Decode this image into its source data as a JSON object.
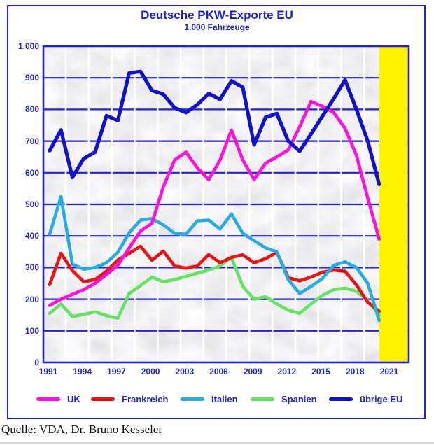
{
  "title": "Deutsche PKW-Exporte EU",
  "subtitle": "1.000 Fahrzeuge",
  "source": "Quelle: VDA, Dr. Bruno Kesseler",
  "colors": {
    "axis_blue": "#2222d6",
    "title_blue": "#1a1ae0",
    "highlight_yellow": "#fff200",
    "plot_background": "#ebebed",
    "gridline_white": "#ffffff"
  },
  "chart_data": {
    "type": "line",
    "title": "Deutsche PKW-Exporte EU",
    "subtitle": "1.000 Fahrzeuge",
    "unit": "1.000 Fahrzeuge",
    "grid": true,
    "legend_position": "bottom",
    "ylim": [
      0,
      1000
    ],
    "x": [
      1991,
      1992,
      1993,
      1994,
      1995,
      1996,
      1997,
      1998,
      1999,
      2000,
      2001,
      2002,
      2003,
      2004,
      2005,
      2006,
      2007,
      2008,
      2009,
      2010,
      2011,
      2012,
      2013,
      2014,
      2015,
      2016,
      2017,
      2018,
      2019,
      2020
    ],
    "x_ticks": [
      {
        "label": "1991"
      },
      {
        "label": "1994"
      },
      {
        "label": "1997"
      },
      {
        "label": "2000"
      },
      {
        "label": "2003"
      },
      {
        "label": "2006"
      },
      {
        "label": "2009"
      },
      {
        "label": "2012"
      },
      {
        "label": "2015"
      },
      {
        "label": "2018"
      },
      {
        "label": "2021"
      }
    ],
    "y_ticks": [
      {
        "label": "1.000",
        "value": 1000
      },
      {
        "label": "900",
        "value": 900
      },
      {
        "label": "800",
        "value": 800
      },
      {
        "label": "700",
        "value": 700
      },
      {
        "label": "600",
        "value": 600
      },
      {
        "label": "500",
        "value": 500
      },
      {
        "label": "400",
        "value": 400
      },
      {
        "label": "300",
        "value": 300
      },
      {
        "label": "200",
        "value": 200
      },
      {
        "label": "100",
        "value": 100
      },
      {
        "label": "0",
        "value": 0
      }
    ],
    "highlight_band": {
      "region_label": "2021",
      "color": "#fff200"
    },
    "draw_order": [
      3,
      1,
      2,
      0,
      4
    ],
    "series": [
      {
        "name": "UK",
        "slug": "uk",
        "color": "#ff0fe0",
        "values": [
          180,
          200,
          215,
          230,
          250,
          278,
          307,
          362,
          415,
          440,
          555,
          640,
          665,
          615,
          578,
          640,
          735,
          640,
          578,
          630,
          650,
          672,
          745,
          825,
          810,
          790,
          740,
          655,
          520,
          390
        ]
      },
      {
        "name": "Frankreich",
        "slug": "frankreich",
        "color": "#ee1111",
        "values": [
          246,
          345,
          290,
          255,
          262,
          288,
          324,
          345,
          367,
          323,
          352,
          305,
          298,
          305,
          341,
          315,
          332,
          340,
          315,
          328,
          348,
          268,
          258,
          270,
          285,
          292,
          288,
          245,
          190,
          162
        ]
      },
      {
        "name": "Italien",
        "slug": "italien",
        "color": "#25ace6",
        "values": [
          405,
          525,
          310,
          295,
          300,
          315,
          348,
          410,
          450,
          455,
          435,
          408,
          405,
          448,
          450,
          422,
          470,
          408,
          385,
          362,
          350,
          262,
          218,
          240,
          265,
          307,
          318,
          300,
          250,
          133
        ]
      },
      {
        "name": "Spanien",
        "slug": "spanien",
        "color": "#63e463",
        "values": [
          155,
          185,
          145,
          152,
          160,
          148,
          140,
          218,
          243,
          270,
          255,
          262,
          272,
          282,
          292,
          305,
          332,
          240,
          200,
          208,
          185,
          165,
          155,
          185,
          212,
          230,
          235,
          225,
          195,
          150
        ]
      },
      {
        "name": "übrige EU",
        "slug": "uebrige-eu",
        "color": "#1111cf",
        "values": [
          670,
          735,
          585,
          645,
          665,
          780,
          765,
          915,
          920,
          860,
          848,
          805,
          790,
          815,
          850,
          832,
          890,
          870,
          688,
          775,
          787,
          700,
          668,
          722,
          778,
          834,
          893,
          800,
          700,
          563
        ]
      }
    ]
  }
}
